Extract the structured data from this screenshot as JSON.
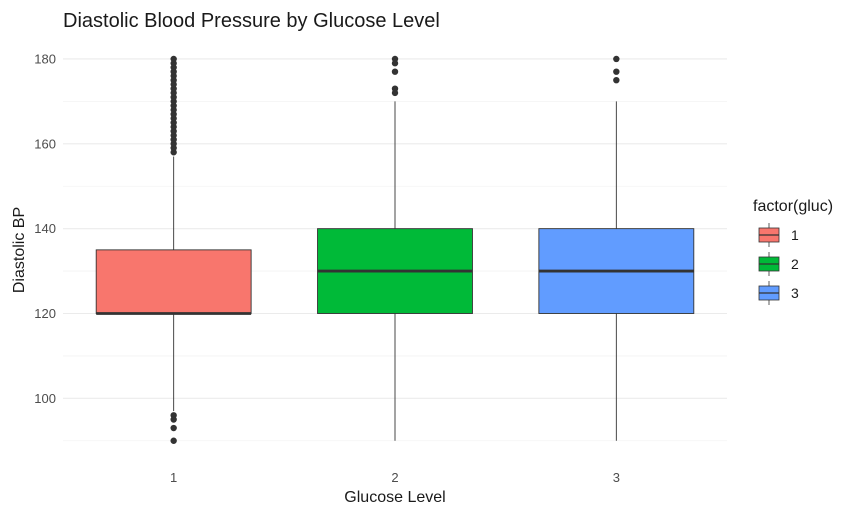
{
  "chart_data": {
    "type": "boxplot",
    "title": "Diastolic Blood Pressure by Glucose Level",
    "xlabel": "Glucose Level",
    "ylabel": "Diastolic BP",
    "categories": [
      "1",
      "2",
      "3"
    ],
    "ylim": [
      89,
      184
    ],
    "yticks": [
      100,
      120,
      140,
      160,
      180
    ],
    "grid": true,
    "legend": {
      "title": "factor(gluc)",
      "placement": "right",
      "entries": [
        "1",
        "2",
        "3"
      ]
    },
    "colors": [
      "#F8766D",
      "#00BA38",
      "#619CFF"
    ],
    "series": [
      {
        "name": "1",
        "whisker_low": 97,
        "q1": 120,
        "median": 120,
        "q3": 135,
        "whisker_high": 157,
        "outliers": [
          90,
          93,
          95,
          96,
          158,
          159,
          160,
          161,
          162,
          163,
          164,
          165,
          166,
          167,
          168,
          169,
          170,
          171,
          172,
          173,
          174,
          175,
          176,
          177,
          178,
          179,
          180
        ]
      },
      {
        "name": "2",
        "whisker_low": 90,
        "q1": 120,
        "median": 130,
        "q3": 140,
        "whisker_high": 170,
        "outliers": [
          172,
          173,
          177,
          179,
          180
        ]
      },
      {
        "name": "3",
        "whisker_low": 90,
        "q1": 120,
        "median": 130,
        "q3": 140,
        "whisker_high": 170,
        "outliers": [
          175,
          177,
          180
        ]
      }
    ]
  }
}
